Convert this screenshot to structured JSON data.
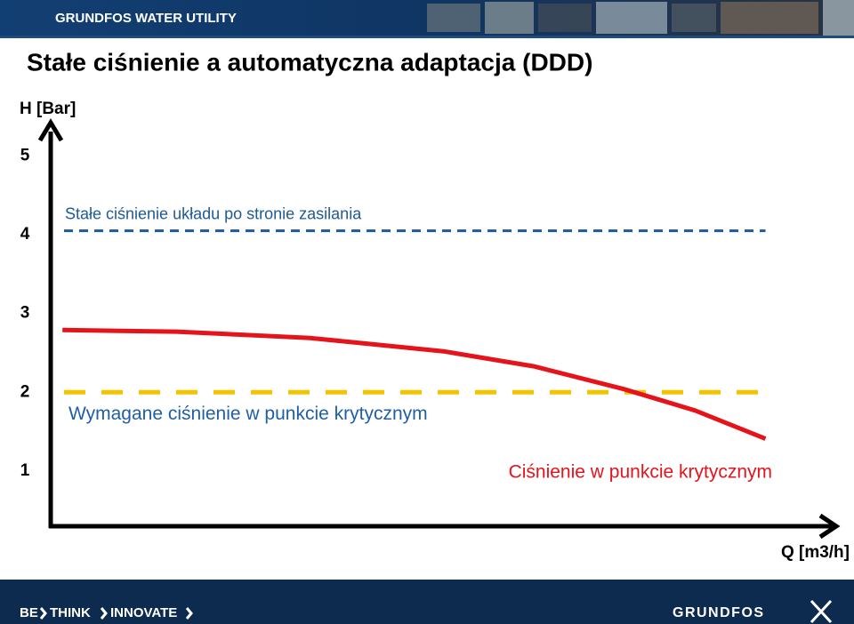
{
  "header": {
    "brand": "GRUNDFOS WATER UTILITY"
  },
  "chart_data": {
    "type": "line",
    "title": "Stałe ciśnienie a automatyczna adaptacja (DDD)",
    "y_label": "H [Bar]",
    "x_label": "Q [m3/h]",
    "ylim": [
      0.3,
      5.4
    ],
    "yticks": [
      1,
      2,
      3,
      4,
      5
    ],
    "xlim": [
      0,
      100
    ],
    "series": [
      {
        "name": "Stałe ciśnienie układu po stronie zasilania",
        "color": "#1f5a96",
        "dash": "short",
        "x": [
          1.7,
          91
        ],
        "values": [
          4.05,
          4.05
        ]
      },
      {
        "name": "Wymagane ciśnienie w punkcie krytycznym",
        "color": "#f5c400",
        "dash": "long",
        "x": [
          1.7,
          90.3
        ],
        "values": [
          2.0,
          2.0
        ]
      },
      {
        "name": "Ciśnienie w punkcie krytycznym",
        "color": "#e5141b",
        "dash": "none",
        "x": [
          1.5,
          16,
          33,
          50,
          61.5,
          73,
          82,
          91
        ],
        "values": [
          2.79,
          2.77,
          2.69,
          2.52,
          2.33,
          2.04,
          1.77,
          1.41
        ]
      }
    ]
  },
  "footer": {
    "slogan": [
      "BE",
      "THINK",
      "INNOVATE"
    ],
    "logo": "GRUNDFOS"
  }
}
